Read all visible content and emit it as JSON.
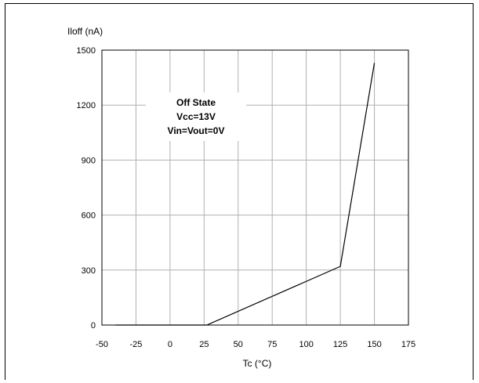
{
  "chart_data": {
    "type": "line",
    "title": "",
    "xlabel": "Tc (°C)",
    "ylabel": "Iloff (nA)",
    "xlim": [
      -50,
      175
    ],
    "ylim": [
      0,
      1500
    ],
    "xticks": [
      -50,
      -25,
      0,
      25,
      50,
      75,
      100,
      125,
      150,
      175
    ],
    "yticks": [
      0,
      300,
      600,
      900,
      1200,
      1500
    ],
    "grid": true,
    "series": [
      {
        "x": [
          -40,
          27,
          125,
          150
        ],
        "y": [
          0,
          0,
          320,
          1430
        ]
      }
    ],
    "annotation": [
      "Off State",
      "Vcc=13V",
      "Vin=Vout=0V"
    ],
    "colors": {
      "line": "#000000",
      "grid": "#b0b0b0",
      "axis": "#000000"
    }
  }
}
